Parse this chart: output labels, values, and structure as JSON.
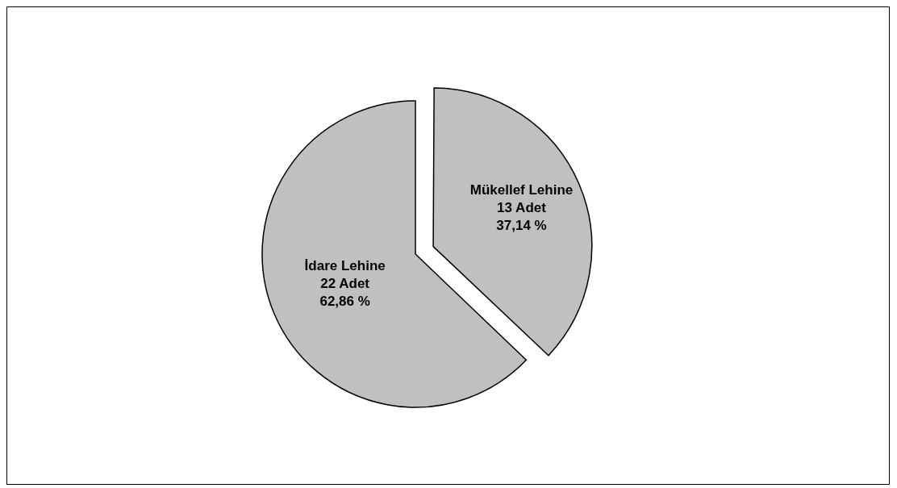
{
  "chart_data": {
    "type": "pie",
    "categories": [
      "Mükellef Lehine",
      "İdare Lehine"
    ],
    "values": [
      13,
      22
    ],
    "value_labels": [
      "13 Adet\n37,14 %",
      "22 Adet\n62,86 %"
    ],
    "colors": [
      "#c0c0c0",
      "#c0c0c0"
    ],
    "legend": false
  }
}
